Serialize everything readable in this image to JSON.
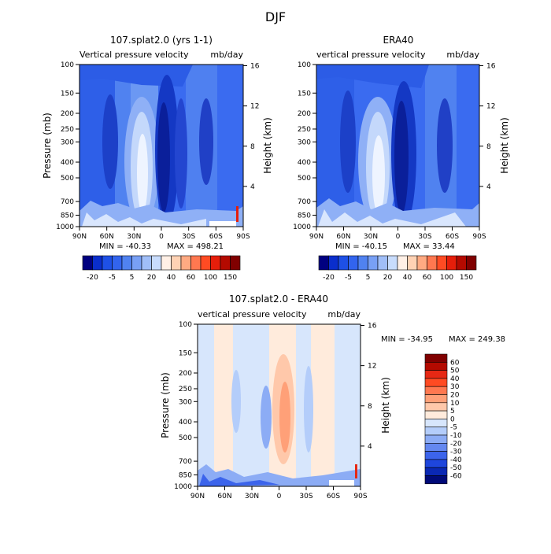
{
  "figure_title": "DJF",
  "chart_data": [
    {
      "type": "heatmap",
      "title": "107.splat2.0 (yrs 1-1)",
      "subtitle_left": "Vertical pressure velocity",
      "subtitle_right": "mb/day",
      "ylabel": "Pressure (mb)",
      "ylabel_right": "Height (km)",
      "x_ticks": [
        "90N",
        "60N",
        "30N",
        "0",
        "30S",
        "60S",
        "90S"
      ],
      "y_ticks": [
        100,
        150,
        200,
        250,
        300,
        400,
        500,
        700,
        850,
        1000
      ],
      "y_ticks_right": [
        16,
        12,
        8,
        4
      ],
      "ylim": [
        1000,
        100
      ],
      "min_label": "MIN = -40.33",
      "max_label": "MAX = 498.21",
      "colorbar_labels": [
        "-20",
        "-5",
        "5",
        "20",
        "40",
        "60",
        "100",
        "150"
      ],
      "colorbar_orientation": "horizontal",
      "colorbar_colors": [
        "#000080",
        "#0a2ecc",
        "#1e50e6",
        "#3264ee",
        "#5082f0",
        "#78a0f5",
        "#a0bef8",
        "#c8dcfc",
        "#fff0e6",
        "#ffd2b4",
        "#ffaa82",
        "#ff7850",
        "#ff4b23",
        "#e61e0a",
        "#b40a00",
        "#800000"
      ]
    },
    {
      "type": "heatmap",
      "title": "ERA40",
      "subtitle_left": "vertical pressure velocity",
      "subtitle_right": "mb/day",
      "ylabel": "",
      "ylabel_right": "Height (km)",
      "x_ticks": [
        "90N",
        "60N",
        "30N",
        "0",
        "30S",
        "60S",
        "90S"
      ],
      "y_ticks": [
        100,
        150,
        200,
        250,
        300,
        400,
        500,
        700,
        850,
        1000
      ],
      "y_ticks_right": [
        16,
        12,
        8,
        4
      ],
      "ylim": [
        1000,
        100
      ],
      "min_label": "MIN = -40.15",
      "max_label": "MAX =  33.44",
      "colorbar_labels": [
        "-20",
        "-5",
        "5",
        "20",
        "40",
        "60",
        "100",
        "150"
      ],
      "colorbar_orientation": "horizontal",
      "colorbar_colors": [
        "#000080",
        "#0a2ecc",
        "#1e50e6",
        "#3264ee",
        "#5082f0",
        "#78a0f5",
        "#a0bef8",
        "#c8dcfc",
        "#fff0e6",
        "#ffd2b4",
        "#ffaa82",
        "#ff7850",
        "#ff4b23",
        "#e61e0a",
        "#b40a00",
        "#800000"
      ]
    },
    {
      "type": "heatmap",
      "title": "107.splat2.0 - ERA40",
      "subtitle_left": "vertical pressure velocity",
      "subtitle_right": "mb/day",
      "ylabel": "Pressure (mb)",
      "ylabel_right": "Height (km)",
      "x_ticks": [
        "90N",
        "60N",
        "30N",
        "0",
        "30S",
        "60S",
        "90S"
      ],
      "y_ticks": [
        100,
        150,
        200,
        250,
        300,
        400,
        500,
        700,
        850,
        1000
      ],
      "y_ticks_right": [
        16,
        12,
        8,
        4
      ],
      "ylim": [
        1000,
        100
      ],
      "min_label": "MIN = -34.95",
      "max_label": "MAX = 249.38",
      "colorbar_labels": [
        "60",
        "50",
        "40",
        "30",
        "20",
        "10",
        "5",
        "0",
        "-5",
        "-10",
        "-20",
        "-30",
        "-40",
        "-50",
        "-60"
      ],
      "colorbar_orientation": "vertical",
      "colorbar_colors": [
        "#800000",
        "#b40a00",
        "#e62814",
        "#ff4b23",
        "#ff7850",
        "#ffa078",
        "#ffc8aa",
        "#ffebdc",
        "#d7e6fc",
        "#b4cdfa",
        "#8cacf5",
        "#6488f0",
        "#3c64eb",
        "#1e46dc",
        "#0a28b4",
        "#000a78"
      ]
    }
  ]
}
